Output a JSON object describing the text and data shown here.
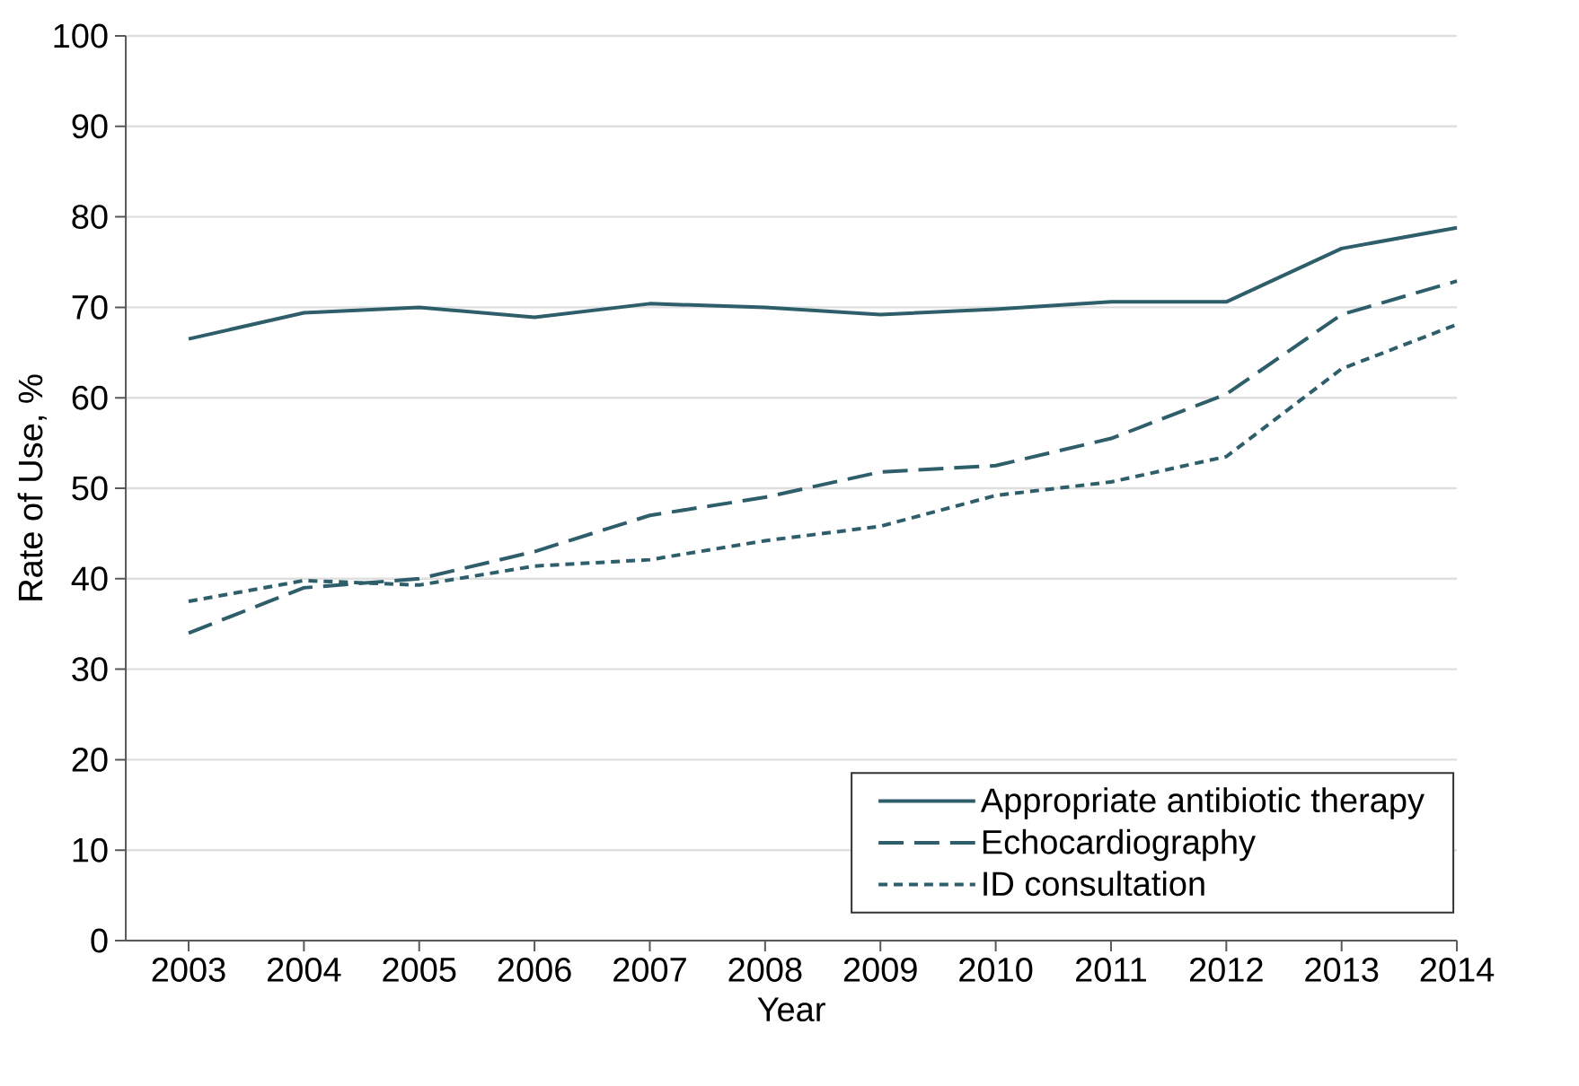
{
  "chart_data": {
    "type": "line",
    "xlabel": "Year",
    "ylabel": "Rate of Use, %",
    "categories": [
      "2003",
      "2004",
      "2005",
      "2006",
      "2007",
      "2008",
      "2009",
      "2010",
      "2011",
      "2012",
      "2013",
      "2014"
    ],
    "series": [
      {
        "name": "Appropriate antibiotic therapy",
        "color": "#2e5e6a",
        "line_style": "solid",
        "values": [
          66.5,
          69.4,
          70.0,
          68.9,
          70.4,
          70.0,
          69.2,
          69.8,
          70.6,
          70.6,
          76.5,
          78.8
        ]
      },
      {
        "name": "Echocardiography",
        "color": "#2e5e6a",
        "line_style": "dashed",
        "values": [
          34.0,
          39.0,
          40.0,
          43.0,
          47.0,
          49.0,
          51.8,
          52.5,
          55.5,
          60.4,
          69.2,
          72.9
        ]
      },
      {
        "name": "ID consultation",
        "color": "#2e5e6a",
        "line_style": "dotted",
        "values": [
          37.5,
          39.8,
          39.3,
          41.4,
          42.1,
          44.2,
          45.8,
          49.2,
          50.7,
          53.5,
          63.2,
          68.1
        ]
      }
    ],
    "ylim": [
      0,
      100
    ],
    "yticks": [
      0,
      10,
      20,
      30,
      40,
      50,
      60,
      70,
      80,
      90,
      100
    ],
    "grid": "y",
    "legend": "bottom right",
    "marker": "none"
  }
}
